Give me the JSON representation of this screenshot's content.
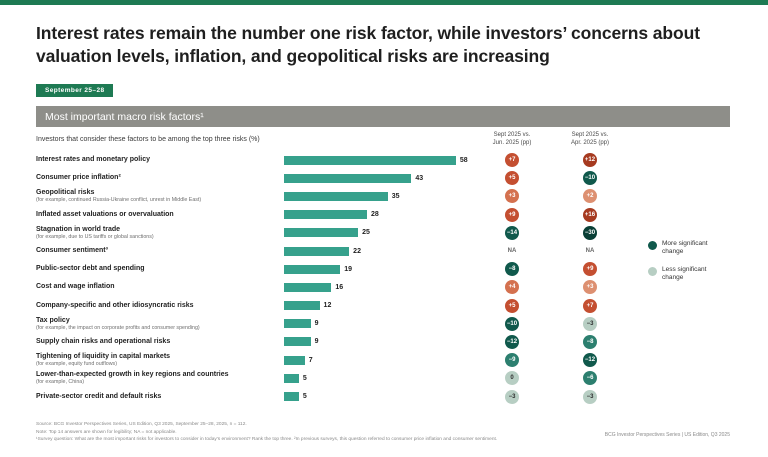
{
  "slide": {
    "title": "Interest rates remain the number one risk factor, while investors’ concerns about valuation levels, inflation, and geopolitical risks are increasing",
    "date_badge": "September 25–28",
    "footer_left": [
      "Source: BCG Investor Perspectives Series, US Edition, Q3 2025, September 25–28, 2025, n = 112.",
      "Note: Top 14 answers are shown for legibility; NA = not applicable.",
      "¹Survey question: What are the most important risks for investors to consider in today’s environment? Rank the top three. ²In previous surveys, this question referred to consumer price inflation and consumer sentiment."
    ],
    "footer_right": "BCG Investor Perspectives Series | US Edition, Q3 2025"
  },
  "colors": {
    "accent_green": "#1e7a53",
    "bar_teal": "#36a18c",
    "band_gray": "#8e8e89",
    "delta": {
      "redDark": "#a63a20",
      "red": "#c44f31",
      "salmon": "#d4714f",
      "salmonLight": "#dd9071",
      "tealDarkest": "#093f36",
      "tealDark": "#10594c",
      "teal": "#2c7f6f",
      "sage": "#b7cec3"
    }
  },
  "chart_data": {
    "type": "bar",
    "title": "Most important macro risk factors¹",
    "subtitle": "Investors that consider these factors to be among the top three risks (%)",
    "xlim": [
      0,
      60
    ],
    "col_headers": [
      "Sept 2025 vs.\nJun. 2025 (pp)",
      "Sept 2025 vs.\nApr. 2025 (pp)"
    ],
    "rows": [
      {
        "label": "Interest rates and monetary policy",
        "note": "",
        "value": 58,
        "d1": {
          "v": "+7",
          "c": "red"
        },
        "d2": {
          "v": "+12",
          "c": "redDark"
        }
      },
      {
        "label": "Consumer price inflation²",
        "note": "",
        "value": 43,
        "d1": {
          "v": "+5",
          "c": "red"
        },
        "d2": {
          "v": "−10",
          "c": "tealDark"
        }
      },
      {
        "label": "Geopolitical risks",
        "note": "(for example, continued Russia-Ukraine conflict, unrest in Middle East)",
        "value": 35,
        "d1": {
          "v": "+3",
          "c": "salmon"
        },
        "d2": {
          "v": "+2",
          "c": "salmonLight"
        }
      },
      {
        "label": "Inflated asset valuations or overvaluation",
        "note": "",
        "value": 28,
        "d1": {
          "v": "+9",
          "c": "red"
        },
        "d2": {
          "v": "+16",
          "c": "redDark"
        }
      },
      {
        "label": "Stagnation in world trade",
        "note": "(for example, due to US tariffs or global sanctions)",
        "value": 25,
        "d1": {
          "v": "−14",
          "c": "tealDark"
        },
        "d2": {
          "v": "−30",
          "c": "tealDarkest"
        }
      },
      {
        "label": "Consumer sentiment³",
        "note": "",
        "value": 22,
        "d1": {
          "v": "NA",
          "c": "na"
        },
        "d2": {
          "v": "NA",
          "c": "na"
        }
      },
      {
        "label": "Public-sector debt and spending",
        "note": "",
        "value": 19,
        "d1": {
          "v": "−8",
          "c": "tealDark"
        },
        "d2": {
          "v": "+9",
          "c": "red"
        }
      },
      {
        "label": "Cost and wage inflation",
        "note": "",
        "value": 16,
        "d1": {
          "v": "+4",
          "c": "salmon"
        },
        "d2": {
          "v": "+3",
          "c": "salmonLight"
        }
      },
      {
        "label": "Company-specific and other idiosyncratic risks",
        "note": "",
        "value": 12,
        "d1": {
          "v": "+5",
          "c": "red"
        },
        "d2": {
          "v": "+7",
          "c": "red"
        }
      },
      {
        "label": "Tax policy",
        "note": "(for example, the impact on corporate profits and consumer spending)",
        "value": 9,
        "d1": {
          "v": "−10",
          "c": "tealDark"
        },
        "d2": {
          "v": "−3",
          "c": "sage"
        }
      },
      {
        "label": "Supply chain risks and operational risks",
        "note": "",
        "value": 9,
        "d1": {
          "v": "−12",
          "c": "tealDark"
        },
        "d2": {
          "v": "−8",
          "c": "teal"
        }
      },
      {
        "label": "Tightening of liquidity in capital markets",
        "note": "(for example, equity fund outflows)",
        "value": 7,
        "d1": {
          "v": "−9",
          "c": "teal"
        },
        "d2": {
          "v": "−12",
          "c": "tealDark"
        }
      },
      {
        "label": "Lower-than-expected growth in key regions and countries",
        "note": "(for example, China)",
        "value": 5,
        "d1": {
          "v": "0",
          "c": "sage"
        },
        "d2": {
          "v": "−6",
          "c": "teal"
        }
      },
      {
        "label": "Private-sector credit and default risks",
        "note": "",
        "value": 5,
        "d1": {
          "v": "−3",
          "c": "sage"
        },
        "d2": {
          "v": "−3",
          "c": "sage"
        }
      }
    ],
    "legend": [
      {
        "label": "More significant change",
        "color": "#10594c"
      },
      {
        "label": "Less significant change",
        "color": "#b7cec3"
      }
    ]
  }
}
